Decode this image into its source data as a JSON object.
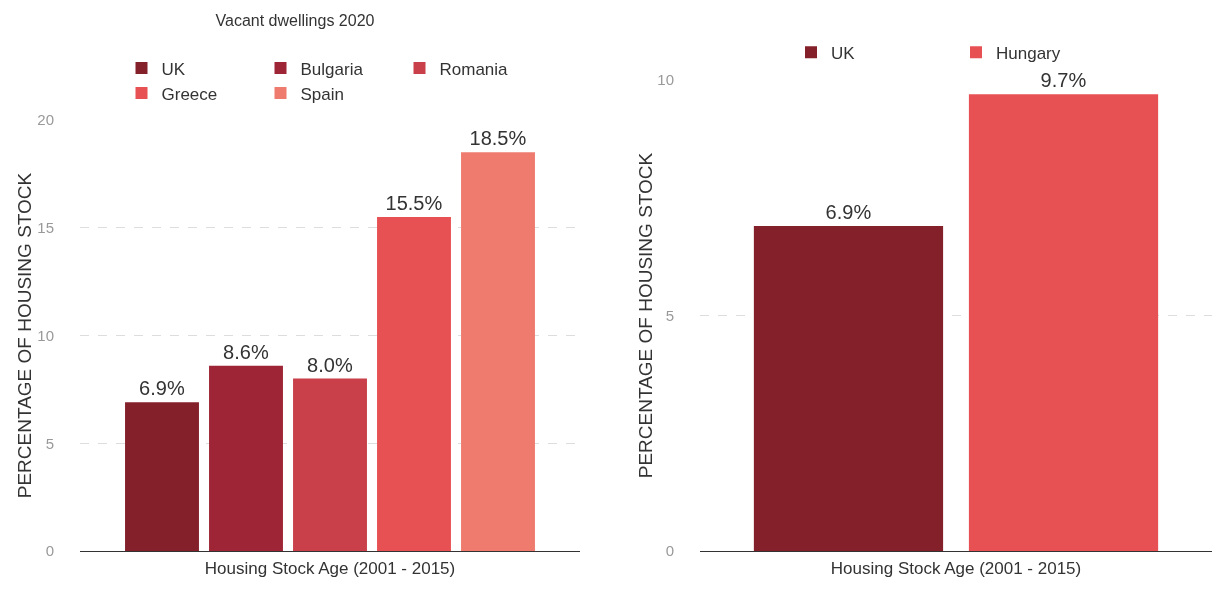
{
  "chart_data": [
    {
      "type": "bar",
      "title": "Vacant dwellings 2020",
      "xlabel": "Housing Stock Age (2001 - 2015)",
      "ylabel": "PERCENTAGE OF HOUSING STOCK",
      "categories": [
        null
      ],
      "series": [
        {
          "name": "UK",
          "color": "#84202a",
          "values": [
            6.9
          ],
          "value_labels": [
            "6.9%"
          ]
        },
        {
          "name": "Bulgaria",
          "color": "#9e2535",
          "values": [
            8.6
          ],
          "value_labels": [
            "8.6%"
          ]
        },
        {
          "name": "Romania",
          "color": "#c9404a",
          "values": [
            8.0
          ],
          "value_labels": [
            "8.0%"
          ]
        },
        {
          "name": "Greece",
          "color": "#e85153",
          "values": [
            15.5
          ],
          "value_labels": [
            "15.5%"
          ]
        },
        {
          "name": "Spain",
          "color": "#ef7b6f",
          "values": [
            18.5
          ],
          "value_labels": [
            "18.5%"
          ]
        }
      ],
      "ylim": [
        0,
        20
      ],
      "yticks": [
        0,
        5,
        10,
        15,
        20
      ],
      "grid": "y",
      "legend": "top"
    },
    {
      "type": "bar",
      "xlabel": "Housing Stock Age (2001 - 2015)",
      "ylabel": "PERCENTAGE OF HOUSING STOCK",
      "categories": [
        null
      ],
      "series": [
        {
          "name": "UK",
          "color": "#84202a",
          "values": [
            6.9
          ],
          "value_labels": [
            "6.9%"
          ]
        },
        {
          "name": "Hungary",
          "color": "#e85153",
          "values": [
            9.7
          ],
          "value_labels": [
            "9.7%"
          ]
        }
      ],
      "ylim": [
        0,
        10
      ],
      "yticks": [
        0,
        5,
        10
      ],
      "grid": "y",
      "legend": "top"
    }
  ]
}
